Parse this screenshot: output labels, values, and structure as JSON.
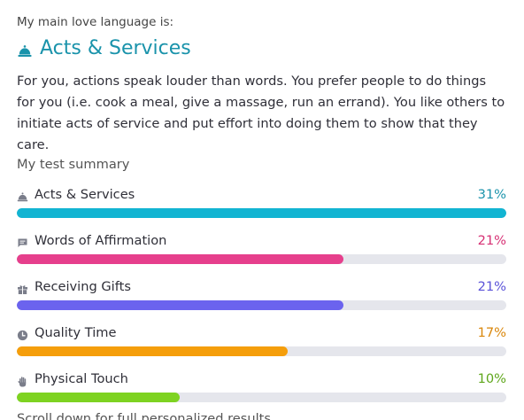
{
  "result": {
    "eyebrow": "My main love language is:",
    "title": "Acts & Services",
    "title_color": "#1a93ab",
    "description": "For you, actions speak louder than words. You prefer people to do things for you (i.e. cook a meal, give a massage, run an errand). You like others to initiate acts of service and put effort into doing them to show that they care."
  },
  "summary": {
    "label": "My test summary",
    "items": [
      {
        "label": "Acts & Services",
        "percent_text": "31%",
        "fraction": 1.0,
        "color": "#12b4d2",
        "text_color": "#1a93ab",
        "icon": "bell-icon"
      },
      {
        "label": "Words of Affirmation",
        "percent_text": "21%",
        "fraction": 0.667,
        "color": "#e63f8c",
        "text_color": "#d62f73",
        "icon": "chat-icon"
      },
      {
        "label": "Receiving Gifts",
        "percent_text": "21%",
        "fraction": 0.667,
        "color": "#6b63ee",
        "text_color": "#5a52d8",
        "icon": "gift-icon"
      },
      {
        "label": "Quality Time",
        "percent_text": "17%",
        "fraction": 0.553,
        "color": "#f59e0b",
        "text_color": "#d9860a",
        "icon": "clock-icon"
      },
      {
        "label": "Physical Touch",
        "percent_text": "10%",
        "fraction": 0.332,
        "color": "#7ed321",
        "text_color": "#5ea61a",
        "icon": "hand-icon"
      }
    ]
  },
  "footer": {
    "text": "Scroll down for full personalized results"
  }
}
